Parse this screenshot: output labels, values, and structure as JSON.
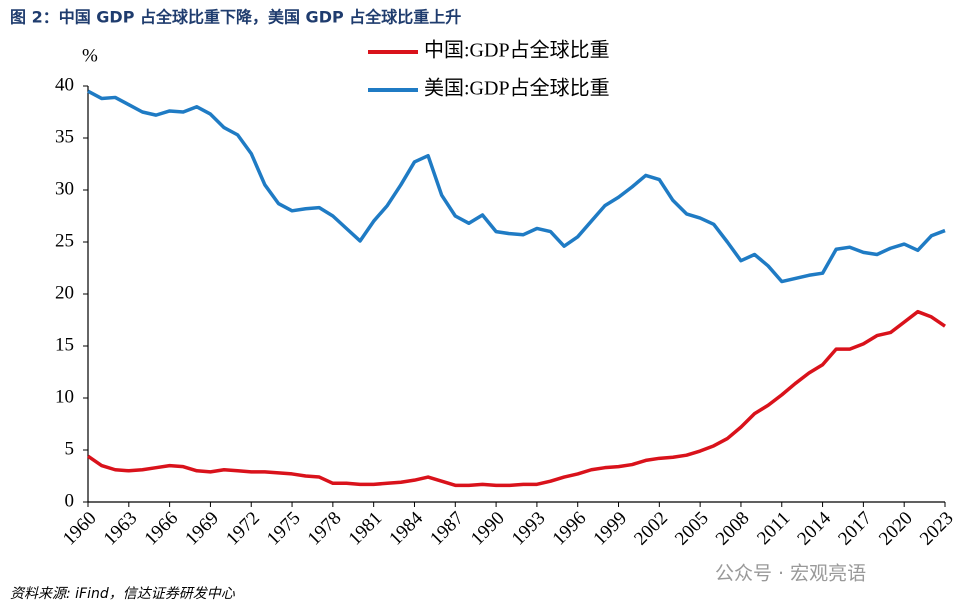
{
  "chart_data": {
    "type": "line",
    "title": "图 2：中国 GDP 占全球比重下降，美国 GDP 占全球比重上升",
    "y_unit": "%",
    "source": "资料来源: iFind，信达证券研发中心",
    "watermark": "公众号 · 宏观亮语",
    "x": [
      1960,
      1961,
      1962,
      1963,
      1964,
      1965,
      1966,
      1967,
      1968,
      1969,
      1970,
      1971,
      1972,
      1973,
      1974,
      1975,
      1976,
      1977,
      1978,
      1979,
      1980,
      1981,
      1982,
      1983,
      1984,
      1985,
      1986,
      1987,
      1988,
      1989,
      1990,
      1991,
      1992,
      1993,
      1994,
      1995,
      1996,
      1997,
      1998,
      1999,
      2000,
      2001,
      2002,
      2003,
      2004,
      2005,
      2006,
      2007,
      2008,
      2009,
      2010,
      2011,
      2012,
      2013,
      2014,
      2015,
      2016,
      2017,
      2018,
      2019,
      2020,
      2021,
      2022,
      2023
    ],
    "series": [
      {
        "name": "中国:GDP占全球比重",
        "color": "#d9121b",
        "values": [
          4.4,
          3.5,
          3.1,
          3.0,
          3.1,
          3.3,
          3.5,
          3.4,
          3.0,
          2.9,
          3.1,
          3.0,
          2.9,
          2.9,
          2.8,
          2.7,
          2.5,
          2.4,
          1.8,
          1.8,
          1.7,
          1.7,
          1.8,
          1.9,
          2.1,
          2.4,
          2.0,
          1.6,
          1.6,
          1.7,
          1.6,
          1.6,
          1.7,
          1.7,
          2.0,
          2.4,
          2.7,
          3.1,
          3.3,
          3.4,
          3.6,
          4.0,
          4.2,
          4.3,
          4.5,
          4.9,
          5.4,
          6.1,
          7.2,
          8.5,
          9.3,
          10.3,
          11.4,
          12.4,
          13.2,
          14.7,
          14.7,
          15.2,
          16.0,
          16.3,
          17.3,
          18.3,
          17.8,
          16.9
        ]
      },
      {
        "name": "美国:GDP占全球比重",
        "color": "#1f7bc4",
        "values": [
          39.5,
          38.8,
          38.9,
          38.2,
          37.5,
          37.2,
          37.6,
          37.5,
          38.0,
          37.3,
          36.0,
          35.3,
          33.5,
          30.5,
          28.7,
          28.0,
          28.2,
          28.3,
          27.5,
          26.3,
          25.1,
          27.0,
          28.5,
          30.5,
          32.7,
          33.3,
          29.5,
          27.5,
          26.8,
          27.6,
          26.0,
          25.8,
          25.7,
          26.3,
          26.0,
          24.6,
          25.5,
          27.0,
          28.5,
          29.3,
          30.3,
          31.4,
          31.0,
          29.0,
          27.7,
          27.3,
          26.7,
          25.0,
          23.2,
          23.8,
          22.7,
          21.2,
          21.5,
          21.8,
          22.0,
          24.3,
          24.5,
          24.0,
          23.8,
          24.4,
          24.8,
          24.2,
          25.6,
          26.1
        ]
      }
    ],
    "xlim": [
      1960,
      2023
    ],
    "xticks": [
      1960,
      1963,
      1966,
      1969,
      1972,
      1975,
      1978,
      1981,
      1984,
      1987,
      1990,
      1993,
      1996,
      1999,
      2002,
      2005,
      2008,
      2011,
      2014,
      2017,
      2020,
      2023
    ],
    "ylim": [
      0,
      40
    ],
    "yticks": [
      0,
      5,
      10,
      15,
      20,
      25,
      30,
      35,
      40
    ],
    "grid": false
  }
}
